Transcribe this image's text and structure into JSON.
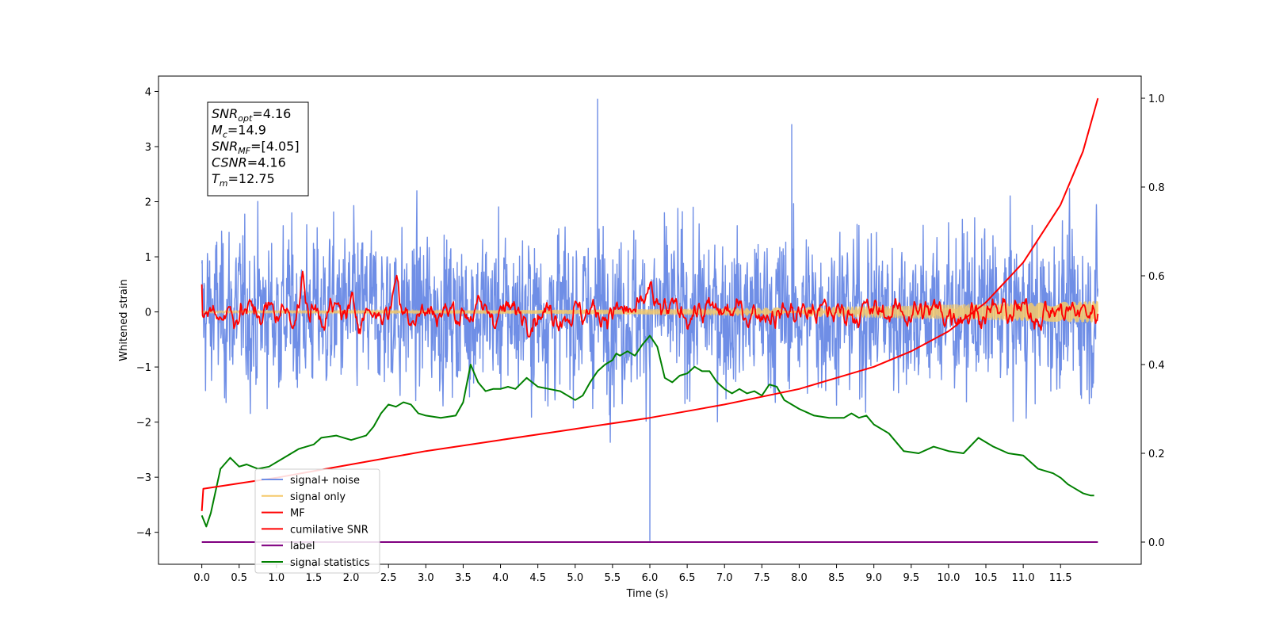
{
  "chart_data": {
    "type": "line",
    "xlabel": "Time (s)",
    "ylabel": "Whitened strain",
    "xlim": [
      -0.58,
      12.58
    ],
    "ylim": [
      -4.58,
      4.28
    ],
    "ylim_right": [
      -0.05,
      1.05
    ],
    "x_ticks": [
      0.0,
      0.5,
      1.0,
      1.5,
      2.0,
      2.5,
      3.0,
      3.5,
      4.0,
      4.5,
      5.0,
      5.5,
      6.0,
      6.5,
      7.0,
      7.5,
      8.0,
      8.5,
      9.0,
      9.5,
      10.0,
      10.5,
      11.0,
      11.5
    ],
    "x_tick_labels": [
      "0.0",
      "0.5",
      "1.0",
      "1.5",
      "2.0",
      "2.5",
      "3.0",
      "3.5",
      "4.0",
      "4.5",
      "5.0",
      "5.5",
      "6.0",
      "6.5",
      "7.0",
      "7.5",
      "8.0",
      "8.5",
      "9.0",
      "9.5",
      "10.0",
      "10.5",
      "11.0",
      "11.5"
    ],
    "y_ticks": [
      4,
      3,
      2,
      1,
      0,
      -1,
      -2,
      -3,
      -4
    ],
    "y_tick_labels": [
      "4",
      "3",
      "2",
      "1",
      "0",
      "−1",
      "−2",
      "−3",
      "−4"
    ],
    "y_right_ticks": [
      1.0,
      0.8,
      0.6,
      0.4,
      0.2,
      0.0
    ],
    "y_right_tick_labels": [
      "1.0",
      "0.8",
      "0.6",
      "0.4",
      "0.2",
      "0.0"
    ],
    "series": [
      {
        "name": "signal+ noise",
        "color": "#6f8ee6",
        "axis": "left",
        "x_range": [
          0.0,
          12.0
        ],
        "approx_std": 0.85,
        "extremes": [
          {
            "x": 5.3,
            "y": 3.86
          },
          {
            "x": 6.0,
            "y": -4.15
          },
          {
            "x": 7.9,
            "y": 3.4
          }
        ]
      },
      {
        "name": "signal only",
        "color": "#f5c96a",
        "axis": "left",
        "x_range": [
          0.0,
          12.0
        ],
        "approx_amplitude_start": 0.02,
        "approx_amplitude_end": 0.2
      },
      {
        "name": "MF",
        "color": "#ff0000",
        "axis": "left",
        "x_range": [
          0.0,
          12.0
        ],
        "peaks": [
          {
            "x": 2.6,
            "y": 1.0
          },
          {
            "x": 1.35,
            "y": 0.68
          },
          {
            "x": 6.0,
            "y": 0.75
          }
        ]
      },
      {
        "name": "cumilative SNR",
        "color": "#ff0000",
        "axis": "right",
        "x": [
          0.0,
          0.02,
          1.0,
          2.0,
          3.0,
          4.0,
          5.0,
          6.0,
          7.0,
          8.0,
          9.0,
          9.5,
          10.0,
          10.5,
          11.0,
          11.5,
          11.8,
          12.0
        ],
        "y": [
          0.07,
          0.12,
          0.145,
          0.175,
          0.205,
          0.23,
          0.255,
          0.28,
          0.31,
          0.345,
          0.395,
          0.43,
          0.475,
          0.54,
          0.63,
          0.76,
          0.88,
          1.0
        ]
      },
      {
        "name": "label",
        "color": "#800080",
        "axis": "right",
        "x": [
          0.0,
          12.0
        ],
        "y": [
          0.0,
          0.0
        ]
      },
      {
        "name": "signal statistics",
        "color": "#008000",
        "axis": "right",
        "x": [
          0.0,
          0.06,
          0.12,
          0.25,
          0.38,
          0.5,
          0.6,
          0.75,
          0.9,
          1.1,
          1.3,
          1.5,
          1.6,
          1.8,
          1.9,
          2.0,
          2.2,
          2.3,
          2.4,
          2.5,
          2.6,
          2.7,
          2.8,
          2.9,
          3.0,
          3.2,
          3.4,
          3.5,
          3.6,
          3.7,
          3.8,
          3.9,
          4.0,
          4.1,
          4.2,
          4.35,
          4.5,
          4.65,
          4.8,
          5.0,
          5.1,
          5.2,
          5.3,
          5.4,
          5.5,
          5.55,
          5.6,
          5.7,
          5.8,
          5.9,
          6.0,
          6.1,
          6.2,
          6.3,
          6.4,
          6.5,
          6.6,
          6.7,
          6.8,
          6.9,
          7.0,
          7.1,
          7.2,
          7.3,
          7.4,
          7.5,
          7.6,
          7.7,
          7.8,
          8.0,
          8.2,
          8.4,
          8.6,
          8.7,
          8.8,
          8.9,
          9.0,
          9.2,
          9.4,
          9.6,
          9.8,
          10.0,
          10.2,
          10.4,
          10.5,
          10.6,
          10.8,
          11.0,
          11.2,
          11.4,
          11.5,
          11.6,
          11.7,
          11.8,
          11.9,
          11.95
        ],
        "y": [
          0.06,
          0.035,
          0.065,
          0.165,
          0.19,
          0.17,
          0.175,
          0.165,
          0.17,
          0.19,
          0.21,
          0.22,
          0.235,
          0.24,
          0.235,
          0.23,
          0.24,
          0.26,
          0.29,
          0.31,
          0.305,
          0.315,
          0.31,
          0.29,
          0.285,
          0.28,
          0.285,
          0.315,
          0.4,
          0.36,
          0.34,
          0.345,
          0.345,
          0.35,
          0.345,
          0.37,
          0.35,
          0.345,
          0.34,
          0.32,
          0.33,
          0.36,
          0.385,
          0.4,
          0.41,
          0.425,
          0.42,
          0.43,
          0.42,
          0.445,
          0.465,
          0.44,
          0.37,
          0.36,
          0.375,
          0.38,
          0.395,
          0.385,
          0.385,
          0.36,
          0.345,
          0.335,
          0.345,
          0.335,
          0.34,
          0.33,
          0.355,
          0.35,
          0.32,
          0.3,
          0.285,
          0.28,
          0.28,
          0.29,
          0.28,
          0.285,
          0.265,
          0.245,
          0.205,
          0.2,
          0.215,
          0.205,
          0.2,
          0.235,
          0.225,
          0.215,
          0.2,
          0.195,
          0.165,
          0.155,
          0.145,
          0.13,
          0.12,
          0.11,
          0.105,
          0.105
        ]
      }
    ],
    "annotation": [
      {
        "var": "SNR",
        "sub": "opt",
        "value": "=4.16"
      },
      {
        "var": "M",
        "sub": "c",
        "value": "=14.9"
      },
      {
        "var": "SNR",
        "sub": "MF",
        "value": "=[4.05]"
      },
      {
        "var": "CSNR",
        "sub": "",
        "value": "=4.16"
      },
      {
        "var": "T",
        "sub": "m",
        "value": "=12.75"
      }
    ],
    "legend_position": "lower-left"
  }
}
